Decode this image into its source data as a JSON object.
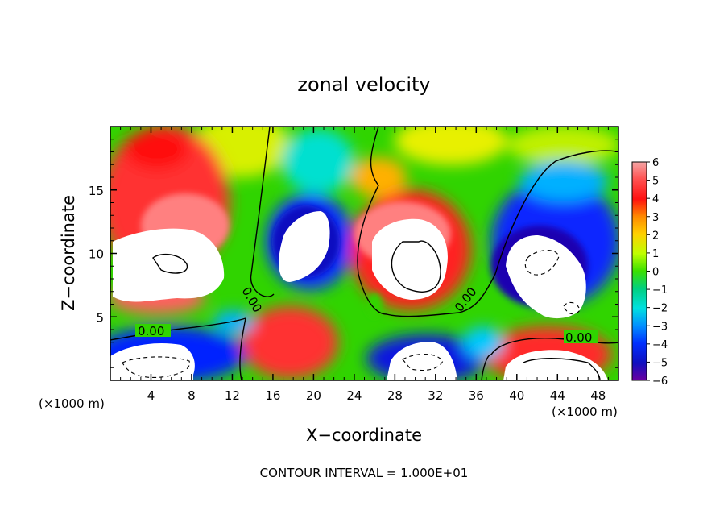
{
  "chart_data": {
    "type": "heatmap",
    "title": "zonal velocity",
    "xlabel": "X−coordinate",
    "ylabel": "Z−coordinate",
    "x_unit_left": "(×1000 m)",
    "x_unit_right": "(×1000 m)",
    "footer": "CONTOUR INTERVAL = 1.000E+01",
    "xlim": [
      0,
      50
    ],
    "ylim": [
      0,
      20
    ],
    "x_ticks": [
      "4",
      "8",
      "12",
      "16",
      "20",
      "24",
      "28",
      "32",
      "36",
      "40",
      "44",
      "48"
    ],
    "y_ticks": [
      "5",
      "10",
      "15"
    ],
    "colorbar": {
      "range": [
        -6,
        6
      ],
      "labels": [
        "6",
        "5",
        "4",
        "3",
        "2",
        "1",
        "0",
        "−1",
        "−2",
        "−3",
        "−4",
        "−5",
        "−6"
      ]
    },
    "contour_labels": [
      {
        "text": "0.00",
        "x": 4.3,
        "z": 3.9
      },
      {
        "text": "0.00",
        "x": 14.0,
        "z": 6.0
      },
      {
        "text": "0.00",
        "x": 35.5,
        "z": 6.0
      },
      {
        "text": "0.00",
        "x": 46.0,
        "z": 3.7
      }
    ],
    "features": [
      {
        "kind": "saturated-positive",
        "x": 5.5,
        "z": 9.5
      },
      {
        "kind": "saturated-negative",
        "x": 18.5,
        "z": 9.5
      },
      {
        "kind": "saturated-positive",
        "x": 30.5,
        "z": 9.5
      },
      {
        "kind": "saturated-negative",
        "x": 43.5,
        "z": 9.5
      },
      {
        "kind": "saturated-negative",
        "x": 6.0,
        "z": 1.5
      },
      {
        "kind": "saturated-negative",
        "x": 30.0,
        "z": 1.5
      },
      {
        "kind": "saturated-positive",
        "x": 43.5,
        "z": 1.5
      },
      {
        "kind": "positive",
        "x": 20.0,
        "z": 2.5
      }
    ]
  }
}
